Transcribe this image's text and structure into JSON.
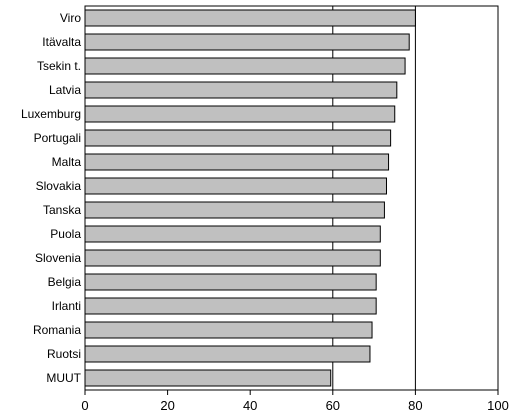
{
  "chart_data": {
    "type": "bar",
    "orientation": "horizontal",
    "title": "",
    "xlabel": "",
    "ylabel": "",
    "categories": [
      "Viro",
      "Itävalta",
      "Tsekin t.",
      "Latvia",
      "Luxemburg",
      "Portugali",
      "Malta",
      "Slovakia",
      "Tanska",
      "Puola",
      "Slovenia",
      "Belgia",
      "Irlanti",
      "Romania",
      "Ruotsi",
      "MUUT"
    ],
    "values": [
      80,
      78.5,
      77.5,
      75.5,
      75,
      74,
      73.5,
      73,
      72.5,
      71.5,
      71.5,
      70.5,
      70.5,
      69.5,
      69,
      59.5
    ],
    "xlim": [
      0,
      100
    ],
    "xticks": [
      "0",
      "20",
      "40",
      "60",
      "80",
      "100"
    ],
    "reference_lines": [
      60,
      80
    ],
    "grid": false,
    "legend": "none",
    "colors": {
      "bar_fill": "#c0c0c0",
      "bar_stroke": "#000000",
      "axis": "#000000"
    }
  }
}
